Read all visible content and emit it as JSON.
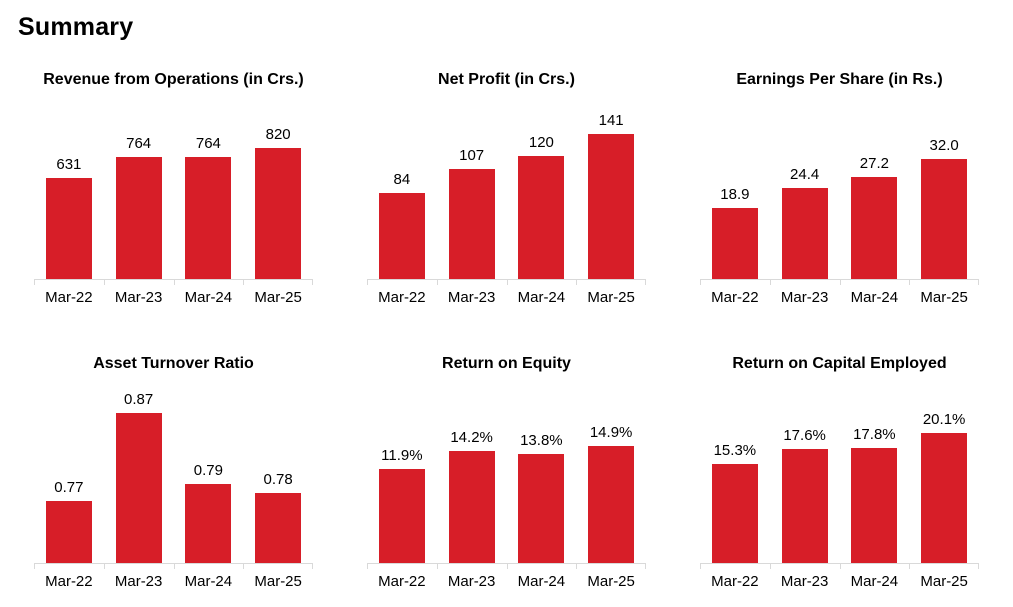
{
  "page": {
    "title": "Summary"
  },
  "colors": {
    "bar": "#D71E28",
    "axis": "#D9D9D9",
    "text": "#000000"
  },
  "chart_data": [
    {
      "type": "bar",
      "title": "Revenue from Operations (in Crs.)",
      "categories": [
        "Mar-22",
        "Mar-23",
        "Mar-24",
        "Mar-25"
      ],
      "values": [
        631,
        764,
        764,
        820
      ],
      "labels": [
        "631",
        "764",
        "764",
        "820"
      ],
      "xlabel": "",
      "ylabel": "",
      "ylim": [
        0,
        900
      ],
      "grid": false,
      "legend": "none"
    },
    {
      "type": "bar",
      "title": "Net Profit (in Crs.)",
      "categories": [
        "Mar-22",
        "Mar-23",
        "Mar-24",
        "Mar-25"
      ],
      "values": [
        84,
        107,
        120,
        141
      ],
      "labels": [
        "84",
        "107",
        "120",
        "141"
      ],
      "xlabel": "",
      "ylabel": "",
      "ylim": [
        0,
        160
      ],
      "grid": false,
      "legend": "none"
    },
    {
      "type": "bar",
      "title": "Earnings Per Share (in Rs.)",
      "categories": [
        "Mar-22",
        "Mar-23",
        "Mar-24",
        "Mar-25"
      ],
      "values": [
        18.9,
        24.4,
        27.2,
        32.0
      ],
      "labels": [
        "18.9",
        "24.4",
        "27.2",
        "32.0"
      ],
      "xlabel": "",
      "ylabel": "",
      "ylim": [
        0,
        35
      ],
      "grid": false,
      "legend": "none"
    },
    {
      "type": "bar",
      "title": "Asset Turnover Ratio",
      "categories": [
        "Mar-22",
        "Mar-23",
        "Mar-24",
        "Mar-25"
      ],
      "values": [
        0.77,
        0.87,
        0.79,
        0.78
      ],
      "labels": [
        "0.77",
        "0.87",
        "0.79",
        "0.78"
      ],
      "xlabel": "",
      "ylabel": "",
      "ylim": [
        0.7,
        0.9
      ],
      "grid": false,
      "legend": "none"
    },
    {
      "type": "bar",
      "title": "Return on Equity",
      "categories": [
        "Mar-22",
        "Mar-23",
        "Mar-24",
        "Mar-25"
      ],
      "values": [
        11.9,
        14.2,
        13.8,
        14.9
      ],
      "labels": [
        "11.9%",
        "14.2%",
        "13.8%",
        "14.9%"
      ],
      "xlabel": "",
      "ylabel": "",
      "ylim": [
        0,
        16
      ],
      "grid": false,
      "legend": "none"
    },
    {
      "type": "bar",
      "title": "Return on Capital Employed",
      "categories": [
        "Mar-22",
        "Mar-23",
        "Mar-24",
        "Mar-25"
      ],
      "values": [
        15.3,
        17.6,
        17.8,
        20.1
      ],
      "labels": [
        "15.3%",
        "17.6%",
        "17.8%",
        "20.1%"
      ],
      "xlabel": "",
      "ylabel": "",
      "ylim": [
        0,
        25
      ],
      "grid": false,
      "legend": "none"
    }
  ]
}
